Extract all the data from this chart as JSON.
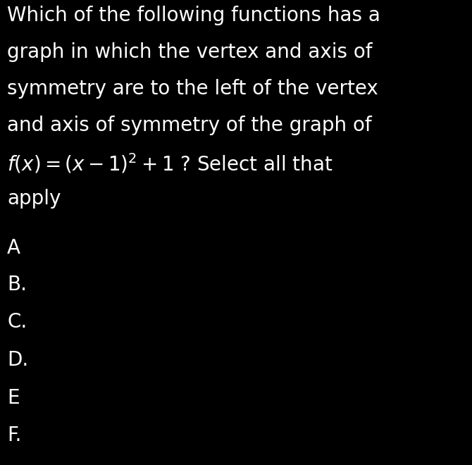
{
  "background_color": "#000000",
  "text_color": "#ffffff",
  "question_lines": [
    "Which of the following functions has a",
    "graph in which the vertex and axis of",
    "symmetry are to the left of the vertex",
    "and axis of symmetry of the graph of"
  ],
  "apply_line": "apply",
  "options": [
    "A",
    "B.",
    "C.",
    "D.",
    "E",
    "F."
  ],
  "question_fontsize": 20,
  "option_fontsize": 20,
  "math_fontsize": 20,
  "fig_width": 6.7,
  "fig_height": 6.6,
  "dpi": 100
}
